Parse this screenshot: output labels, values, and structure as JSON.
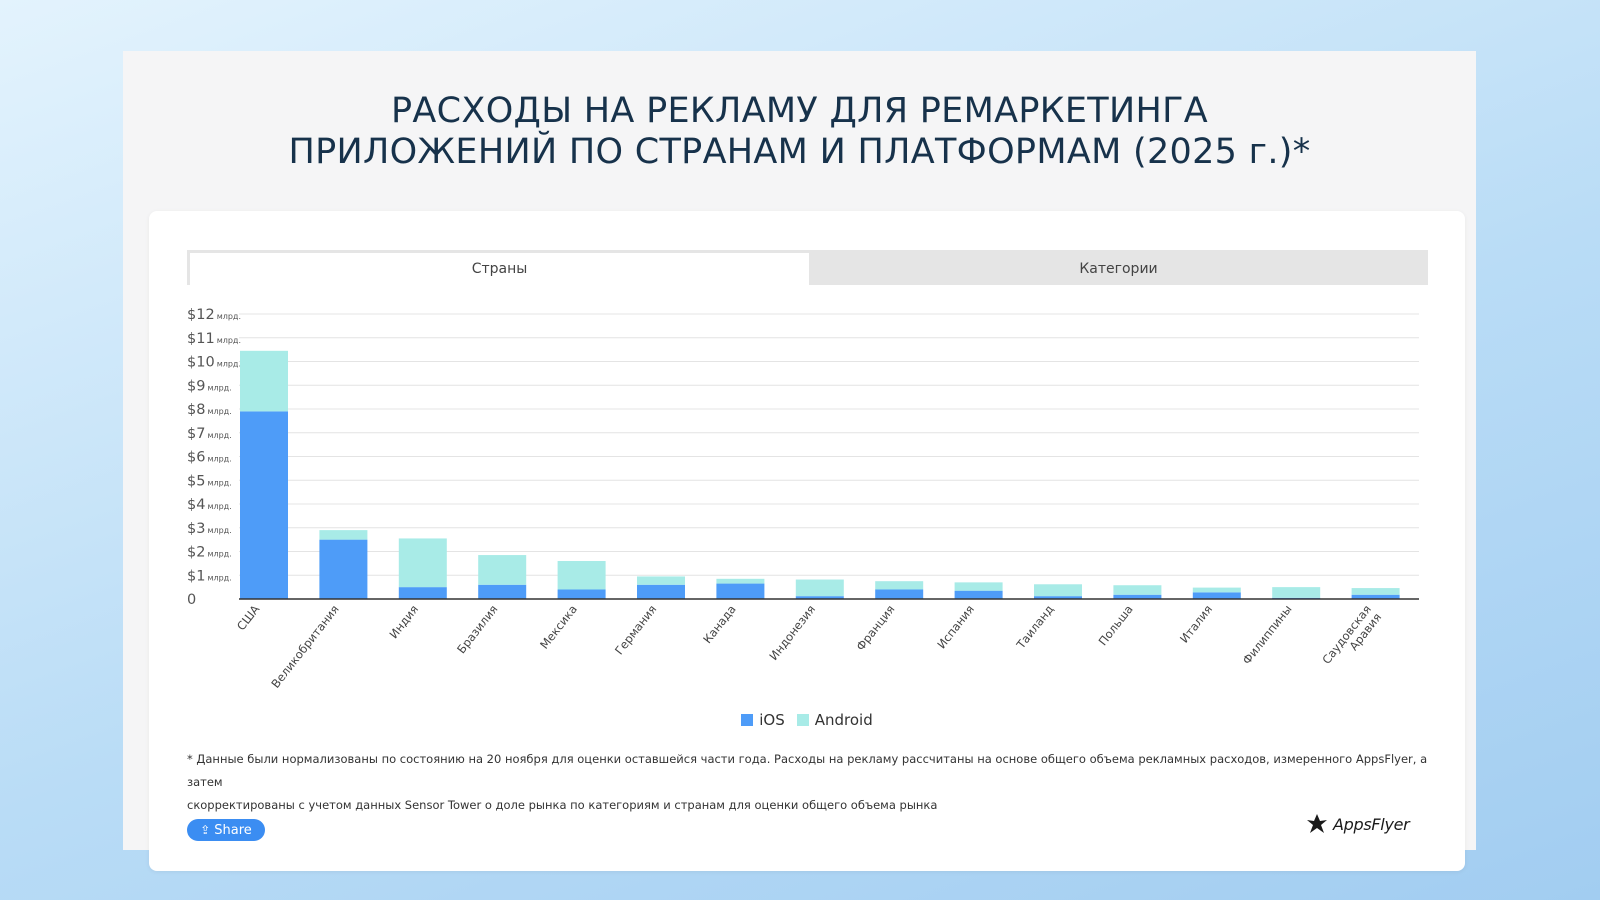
{
  "page": {
    "title_line1": "РАСХОДЫ НА РЕКЛАМУ ДЛЯ РЕМАРКЕТИНГА",
    "title_line2": "ПРИЛОЖЕНИЙ ПО СТРАНАМ И ПЛАТФОРМАМ (2025 г.)*"
  },
  "tabs": [
    {
      "label": "Страны",
      "active": true
    },
    {
      "label": "Категории",
      "active": false
    }
  ],
  "chart_data": {
    "type": "bar",
    "stacked": true,
    "title": "",
    "xlabel": "",
    "ylabel": "",
    "ylim": [
      0,
      12
    ],
    "y_ticks": [
      {
        "value": "$12",
        "unit": "млрд."
      },
      {
        "value": "$11",
        "unit": "млрд."
      },
      {
        "value": "$10",
        "unit": "млрд."
      },
      {
        "value": "$9",
        "unit": "млрд."
      },
      {
        "value": "$8",
        "unit": "млрд."
      },
      {
        "value": "$7",
        "unit": "млрд."
      },
      {
        "value": "$6",
        "unit": "млрд."
      },
      {
        "value": "$5",
        "unit": "млрд."
      },
      {
        "value": "$4",
        "unit": "млрд."
      },
      {
        "value": "$3",
        "unit": "млрд."
      },
      {
        "value": "$2",
        "unit": "млрд."
      },
      {
        "value": "$1",
        "unit": "млрд."
      },
      {
        "value": "0",
        "unit": ""
      }
    ],
    "categories": [
      "США",
      "Великобритания",
      "Индия",
      "Бразилия",
      "Мексика",
      "Германия",
      "Канада",
      "Индонезия",
      "Франция",
      "Испания",
      "Таиланд",
      "Польша",
      "Италия",
      "Филиппины",
      "Саудовская Аравия"
    ],
    "series": [
      {
        "name": "iOS",
        "color": "#4e9cf8",
        "values": [
          7.9,
          2.5,
          0.5,
          0.6,
          0.4,
          0.6,
          0.65,
          0.12,
          0.4,
          0.35,
          0.12,
          0.18,
          0.28,
          0.05,
          0.18
        ]
      },
      {
        "name": "Android",
        "color": "#a8ebe7",
        "values": [
          2.55,
          0.4,
          2.05,
          1.25,
          1.2,
          0.35,
          0.2,
          0.7,
          0.35,
          0.35,
          0.5,
          0.4,
          0.2,
          0.45,
          0.28
        ]
      }
    ],
    "grid": true,
    "legend_position": "bottom-center"
  },
  "footnote": {
    "line1": "* Данные были нормализованы по состоянию на 20 ноября для оценки оставшейся части года. Расходы на рекламу рассчитаны на основе общего объема рекламных расходов, измеренного AppsFlyer, а затем",
    "line2": "скорректированы с учетом данных Sensor Tower о доле рынка по категориям и странам для оценки общего объема рынка"
  },
  "share": {
    "label": "Share",
    "icon": "share-icon"
  },
  "brand": {
    "name": "AppsFlyer",
    "icon": "appsflyer-logo-icon"
  }
}
